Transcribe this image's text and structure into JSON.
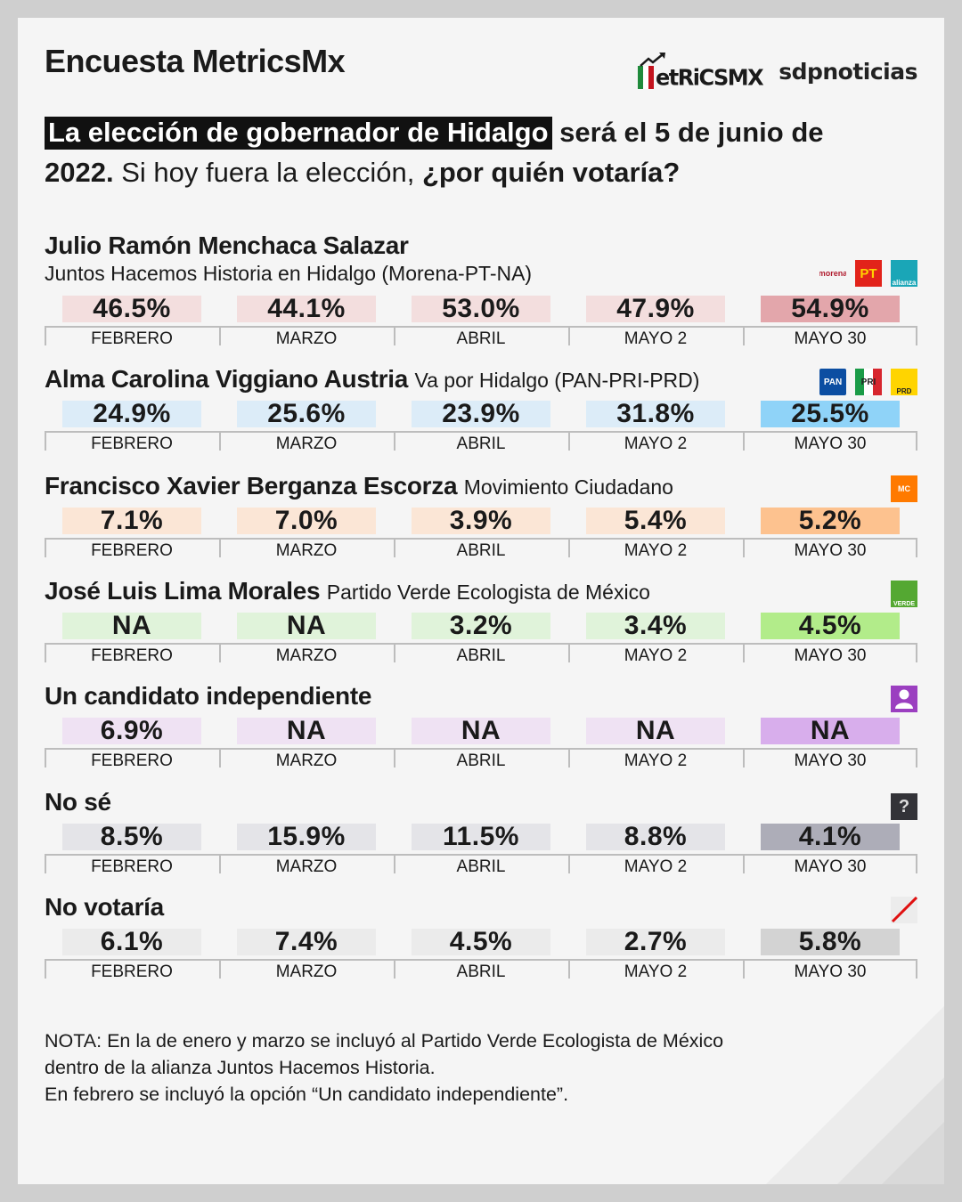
{
  "header": {
    "title": "Encuesta MetricsMx",
    "logo_metrics": "etRiCSMX",
    "logo_sdp": "sdpnoticias"
  },
  "question": {
    "highlight": "La elección de gobernador de Hidalgo",
    "part1": " será el 5 de junio de",
    "part2_bold": "2022.",
    "part3": " Si hoy fuera la elección, ",
    "part4_bold": "¿por quién votaría?"
  },
  "months": [
    "FEBRERO",
    "MARZO",
    "ABRIL",
    "MAYO 2",
    "MAYO 30"
  ],
  "chart_data": {
    "type": "table",
    "title": "La elección de gobernador de Hidalgo será el 5 de junio de 2022. Si hoy fuera la elección, ¿por quién votaría?",
    "categories": [
      "FEBRERO",
      "MARZO",
      "ABRIL",
      "MAYO 2",
      "MAYO 30"
    ],
    "unit": "%",
    "series": [
      {
        "name": "Julio Ramón Menchaca Salazar",
        "party": "Juntos Hacemos Historia en Hidalgo (Morena-PT-NA)",
        "values": [
          46.5,
          44.1,
          53.0,
          47.9,
          54.9
        ],
        "labels": [
          "46.5%",
          "44.1%",
          "53.0%",
          "47.9%",
          "54.9%"
        ],
        "color_light": "#f3dede",
        "color_strong": "#e3a6ab"
      },
      {
        "name": "Alma Carolina Viggiano Austria",
        "party": "Va por Hidalgo (PAN-PRI-PRD)",
        "values": [
          24.9,
          25.6,
          23.9,
          31.8,
          25.5
        ],
        "labels": [
          "24.9%",
          "25.6%",
          "23.9%",
          "31.8%",
          "25.5%"
        ],
        "color_light": "#dcecf8",
        "color_strong": "#8fd3f8"
      },
      {
        "name": "Francisco Xavier Berganza Escorza",
        "party": "Movimiento Ciudadano",
        "values": [
          7.1,
          7.0,
          3.9,
          5.4,
          5.2
        ],
        "labels": [
          "7.1%",
          "7.0%",
          "3.9%",
          "5.4%",
          "5.2%"
        ],
        "color_light": "#fbe6d6",
        "color_strong": "#fdc28f"
      },
      {
        "name": "José Luis Lima Morales",
        "party": "Partido Verde Ecologista de México",
        "values": [
          null,
          null,
          3.2,
          3.4,
          4.5
        ],
        "labels": [
          "NA",
          "NA",
          "3.2%",
          "3.4%",
          "4.5%"
        ],
        "color_light": "#e0f3da",
        "color_strong": "#b2ec8a"
      },
      {
        "name": "Un candidato independiente",
        "party": "",
        "values": [
          6.9,
          null,
          null,
          null,
          null
        ],
        "labels": [
          "6.9%",
          "NA",
          "NA",
          "NA",
          "NA"
        ],
        "color_light": "#efe2f3",
        "color_strong": "#d8aeec"
      },
      {
        "name": "No sé",
        "party": "",
        "values": [
          8.5,
          15.9,
          11.5,
          8.8,
          4.1
        ],
        "labels": [
          "8.5%",
          "15.9%",
          "11.5%",
          "8.8%",
          "4.1%"
        ],
        "color_light": "#e4e4e8",
        "color_strong": "#adadb8"
      },
      {
        "name": "No votaría",
        "party": "",
        "values": [
          6.1,
          7.4,
          4.5,
          2.7,
          5.8
        ],
        "labels": [
          "6.1%",
          "7.4%",
          "4.5%",
          "2.7%",
          "5.8%"
        ],
        "color_light": "#ebebeb",
        "color_strong": "#d3d3d3"
      }
    ]
  },
  "party_icons": {
    "morena": "morena",
    "pt": "PT",
    "alianza": "alianza",
    "pan": "PAN",
    "pri": "PRI",
    "prd": "PRD",
    "mc": "MC",
    "verde": "VERDE",
    "question": "?"
  },
  "nota": {
    "line1": "NOTA: En la de enero y marzo se incluyó al Partido Verde Ecologista de México",
    "line2": "dentro de la alianza Juntos Hacemos Historia.",
    "line3": "En febrero se incluyó la opción “Un candidato independiente”."
  }
}
